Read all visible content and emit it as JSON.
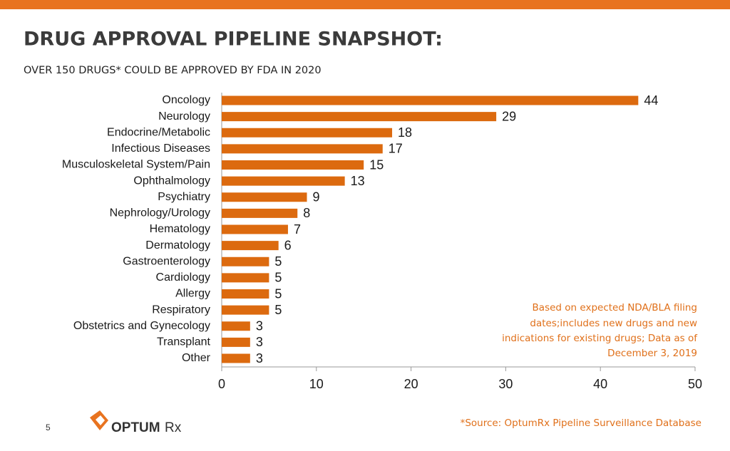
{
  "slide": {
    "title": "DRUG APPROVAL PIPELINE SNAPSHOT:",
    "subtitle": "OVER 150 DRUGS* COULD BE APPROVED BY FDA IN 2020",
    "note_lines": [
      "Based on expected NDA/BLA filing",
      "dates;includes new drugs and new",
      "indications for existing drugs; Data as of",
      "December 3, 2019"
    ],
    "source": "*Source: OptumRx Pipeline Surveillance Database",
    "page_number": 5,
    "logo": {
      "brand": "OPTUM",
      "suffix": "Rx"
    }
  },
  "chart_data": {
    "type": "bar",
    "orientation": "horizontal",
    "color": "#dc6a0f",
    "categories": [
      "Oncology",
      "Neurology",
      "Endocrine/Metabolic",
      "Infectious Diseases",
      "Musculoskeletal System/Pain",
      "Ophthalmology",
      "Psychiatry",
      "Nephrology/Urology",
      "Hematology",
      "Dermatology",
      "Gastroenterology",
      "Cardiology",
      "Allergy",
      "Respiratory",
      "Obstetrics and Gynecology",
      "Transplant",
      "Other"
    ],
    "values": [
      44,
      29,
      18,
      17,
      15,
      13,
      9,
      8,
      7,
      6,
      5,
      5,
      5,
      5,
      3,
      3,
      3
    ],
    "xlim": [
      0,
      50
    ],
    "xticks": [
      0,
      10,
      20,
      30,
      40,
      50
    ],
    "grid": false
  }
}
